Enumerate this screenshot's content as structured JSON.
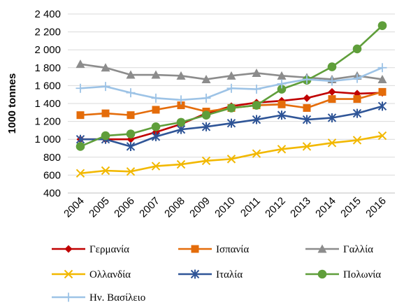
{
  "chart_data": {
    "type": "line",
    "title": "",
    "xlabel": "",
    "ylabel": "1000 tonnes",
    "ylim": [
      400,
      2400
    ],
    "yticks": [
      400,
      600,
      800,
      1000,
      1200,
      1400,
      1600,
      1800,
      2000,
      2200,
      2400
    ],
    "ytick_labels": [
      "400",
      "600",
      "800",
      "1 000",
      "1 200",
      "1 400",
      "1 600",
      "1 800",
      "2 000",
      "2 200",
      "2 400"
    ],
    "grid": "horizontal",
    "legend_position": "bottom",
    "x": [
      "2004",
      "2005",
      "2006",
      "2007",
      "2008",
      "2009",
      "2010",
      "2011",
      "2012",
      "2013",
      "2014",
      "2015",
      "2016"
    ],
    "series": [
      {
        "name": "Γερμανία",
        "color": "#c00000",
        "marker": "diamond",
        "values": [
          1000,
          1000,
          1000,
          1080,
          1170,
          1290,
          1370,
          1410,
          1430,
          1460,
          1530,
          1510,
          1520
        ]
      },
      {
        "name": "Ισπανία",
        "color": "#e46c0a",
        "marker": "square",
        "values": [
          1270,
          1290,
          1270,
          1330,
          1380,
          1310,
          1350,
          1380,
          1390,
          1350,
          1450,
          1450,
          1530
        ]
      },
      {
        "name": "Γαλλία",
        "color": "#8c8c8c",
        "marker": "triangle",
        "values": [
          1840,
          1800,
          1720,
          1720,
          1710,
          1670,
          1710,
          1740,
          1710,
          1690,
          1670,
          1710,
          1670
        ]
      },
      {
        "name": "Ολλανδία",
        "color": "#f2b800",
        "marker": "x",
        "values": [
          620,
          650,
          640,
          700,
          720,
          760,
          780,
          840,
          890,
          920,
          960,
          990,
          1040
        ]
      },
      {
        "name": "Ιταλία",
        "color": "#2f5597",
        "marker": "asterisk",
        "values": [
          1000,
          1000,
          920,
          1030,
          1110,
          1140,
          1180,
          1220,
          1270,
          1220,
          1240,
          1290,
          1370
        ]
      },
      {
        "name": "Πολωνία",
        "color": "#5f9e3a",
        "marker": "circle",
        "values": [
          920,
          1040,
          1060,
          1140,
          1190,
          1270,
          1350,
          1380,
          1560,
          1660,
          1810,
          2010,
          2270
        ]
      },
      {
        "name": "Ην. Βασίλειο",
        "color": "#9dc3e6",
        "marker": "plus",
        "values": [
          1570,
          1590,
          1520,
          1460,
          1440,
          1460,
          1570,
          1560,
          1620,
          1670,
          1650,
          1680,
          1800
        ]
      }
    ]
  }
}
